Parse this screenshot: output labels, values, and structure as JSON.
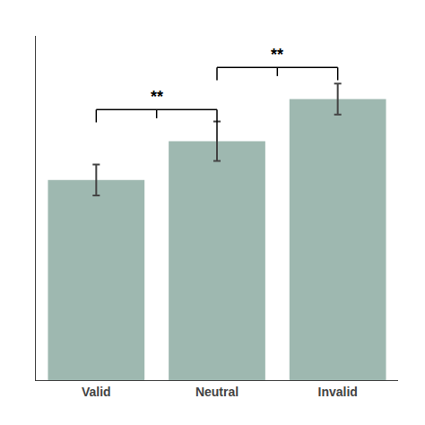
{
  "chart_data": {
    "type": "bar",
    "categories": [
      "Valid",
      "Neutral",
      "Invalid"
    ],
    "values": [
      285,
      340,
      400
    ],
    "errors": [
      22,
      28,
      22
    ],
    "color": "#9eb8b0",
    "ylim": [
      0,
      490
    ],
    "grid": false,
    "tick_labels": "x",
    "annotations": [
      {
        "from": "Valid",
        "to": "Neutral",
        "y": 385,
        "text": "**"
      },
      {
        "from": "Neutral",
        "to": "Invalid",
        "y": 445,
        "text": "**"
      }
    ]
  }
}
